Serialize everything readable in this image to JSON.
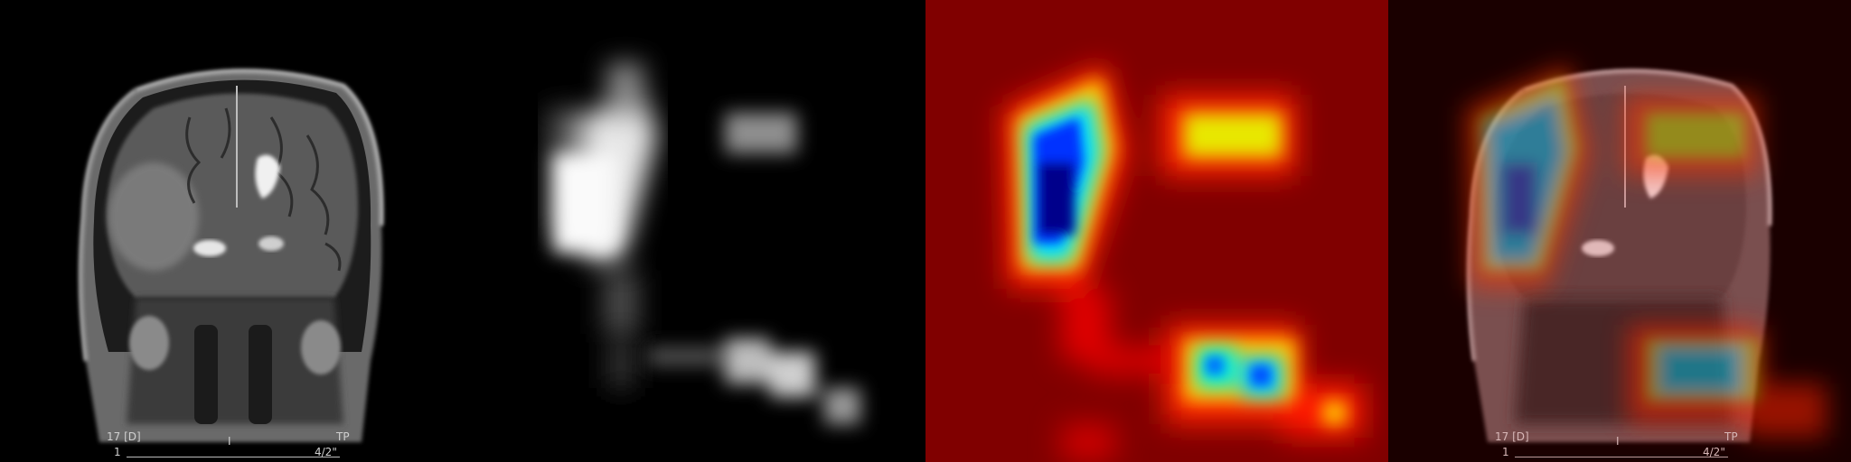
{
  "panels": [
    {
      "id": "mri-original"
    },
    {
      "id": "attention-map-grayscale"
    },
    {
      "id": "attention-map-jet"
    },
    {
      "id": "attention-overlay"
    }
  ],
  "overlay_text": {
    "top_left": "17 [D]",
    "top_right": "TP",
    "bottom_left": "1",
    "bottom_center": "I",
    "bottom_right": "4/2\""
  },
  "colors": {
    "background": "#000000",
    "jet_low": "#800000",
    "jet_high": "#00008b"
  }
}
